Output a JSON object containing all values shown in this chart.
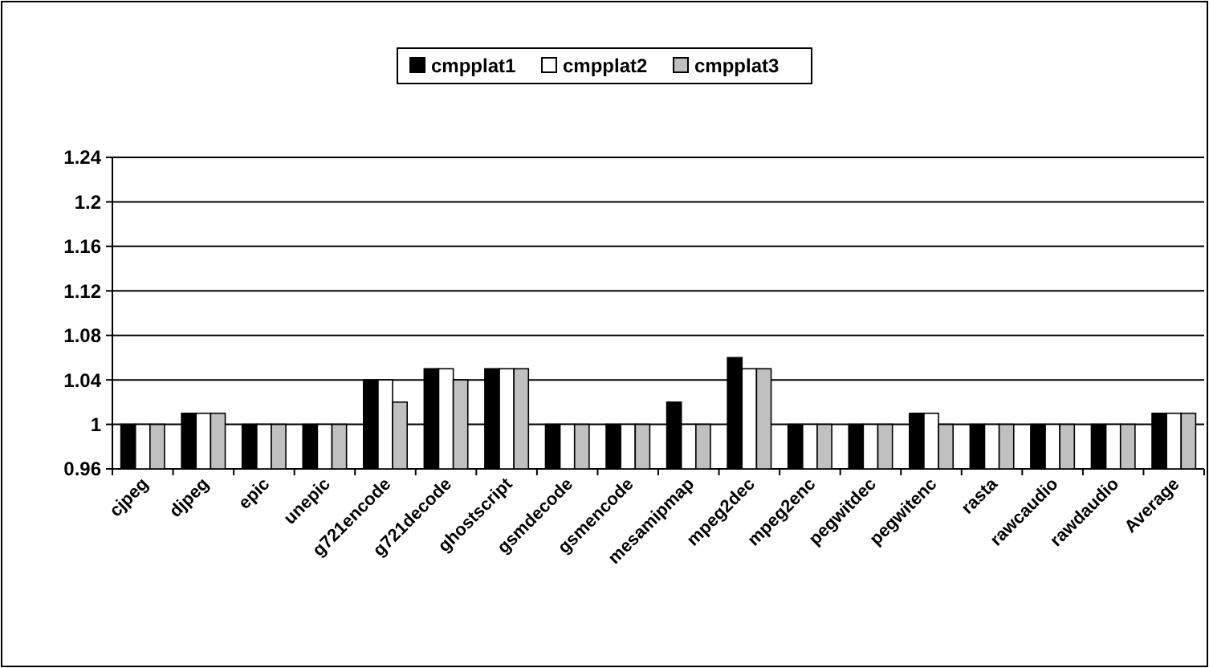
{
  "chart_data": {
    "type": "bar",
    "categories": [
      "cjpeg",
      "djpeg",
      "epic",
      "unepic",
      "g721encode",
      "g721decode",
      "ghostscript",
      "gsmdecode",
      "gsmencode",
      "mesamipmap",
      "mpeg2dec",
      "mpeg2enc",
      "pegwitdec",
      "pegwitenc",
      "rasta",
      "rawcaudio",
      "rawdaudio",
      "Average"
    ],
    "series": [
      {
        "name": "cmpplat1",
        "color": "#000000",
        "values": [
          1,
          1.01,
          1,
          1,
          1.04,
          1.05,
          1.05,
          1,
          1,
          1.02,
          1.06,
          1,
          1,
          1.01,
          1,
          1,
          1,
          1.01
        ]
      },
      {
        "name": "cmpplat2",
        "color": "#ffffff",
        "values": [
          1,
          1.01,
          1,
          1,
          1.04,
          1.05,
          1.05,
          1,
          1,
          1,
          1.05,
          1,
          1,
          1.01,
          1,
          1,
          1,
          1.01
        ]
      },
      {
        "name": "cmpplat3",
        "color": "#c0c0c0",
        "values": [
          1,
          1.01,
          1,
          1,
          1.02,
          1.04,
          1.05,
          1,
          1,
          1,
          1.05,
          1,
          1,
          1,
          1,
          1,
          1,
          1.01
        ]
      }
    ],
    "ylim": [
      0.96,
      1.24
    ],
    "yticks": [
      0.96,
      1,
      1.04,
      1.08,
      1.12,
      1.16,
      1.2,
      1.24
    ],
    "grid": "y",
    "legend": "top"
  }
}
